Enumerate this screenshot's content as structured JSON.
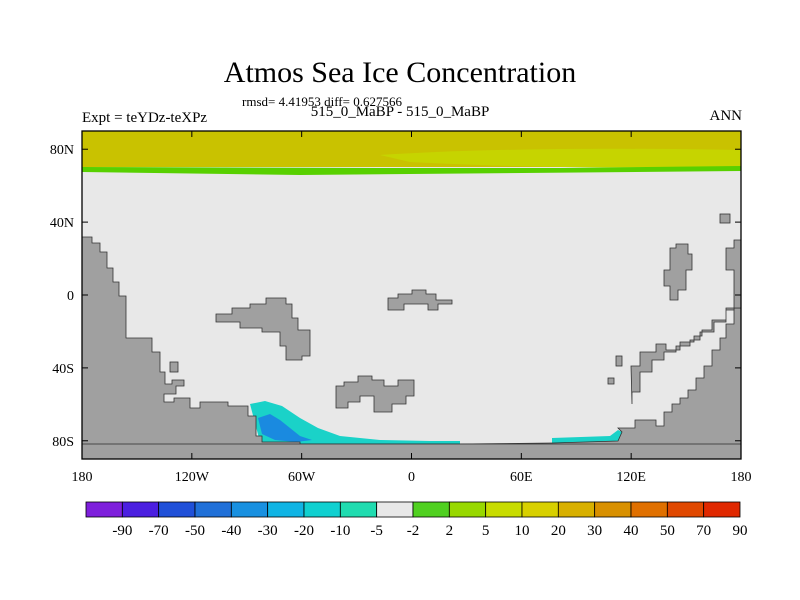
{
  "header": {
    "title": "Atmos Sea Ice Concentration",
    "stats": "rmsd= 4.41953 diff= 0.627566",
    "subtitle": "515_0_MaBP - 515_0_MaBP",
    "left_label": "Expt = teYDz-teXPz",
    "right_label": "ANN"
  },
  "map": {
    "projection": "cylindrical equidistant",
    "lon_range": [
      -180,
      180
    ],
    "lat_range": [
      -90,
      90
    ],
    "x_ticks": [
      {
        "lon": -180,
        "label": "180"
      },
      {
        "lon": -120,
        "label": "120W"
      },
      {
        "lon": -60,
        "label": "60W"
      },
      {
        "lon": 0,
        "label": "0"
      },
      {
        "lon": 60,
        "label": "60E"
      },
      {
        "lon": 120,
        "label": "120E"
      },
      {
        "lon": 180,
        "label": "180"
      }
    ],
    "y_ticks": [
      {
        "lat": 80,
        "label": "80N"
      },
      {
        "lat": 40,
        "label": "40N"
      },
      {
        "lat": 0,
        "label": "0"
      },
      {
        "lat": -40,
        "label": "40S"
      },
      {
        "lat": -80,
        "label": "80S"
      }
    ],
    "colors": {
      "ocean": "#e8e8e8",
      "land": "#a0a0a0",
      "arctic_base": "#c9c200",
      "arctic_band": "#c6d400",
      "arctic_edge": "#58d000",
      "antarctic_cyan": "#1ad2c8",
      "antarctic_blue": "#1a8ae0",
      "antarctic_green": "#3cd43c"
    }
  },
  "colorbar": {
    "colors": [
      "#7e1fdc",
      "#4b1fe0",
      "#2050d8",
      "#2070d8",
      "#1890e0",
      "#10b4e4",
      "#10d0d0",
      "#20dcb0",
      "#e8e8e8",
      "#50d020",
      "#98d800",
      "#c8dc00",
      "#d8d000",
      "#d8b000",
      "#d89000",
      "#e07000",
      "#e04800",
      "#e02800"
    ],
    "labels": [
      "-90",
      "-70",
      "-50",
      "-40",
      "-30",
      "-20",
      "-10",
      "-5",
      "-2",
      "2",
      "5",
      "10",
      "20",
      "30",
      "40",
      "50",
      "70",
      "90"
    ]
  }
}
